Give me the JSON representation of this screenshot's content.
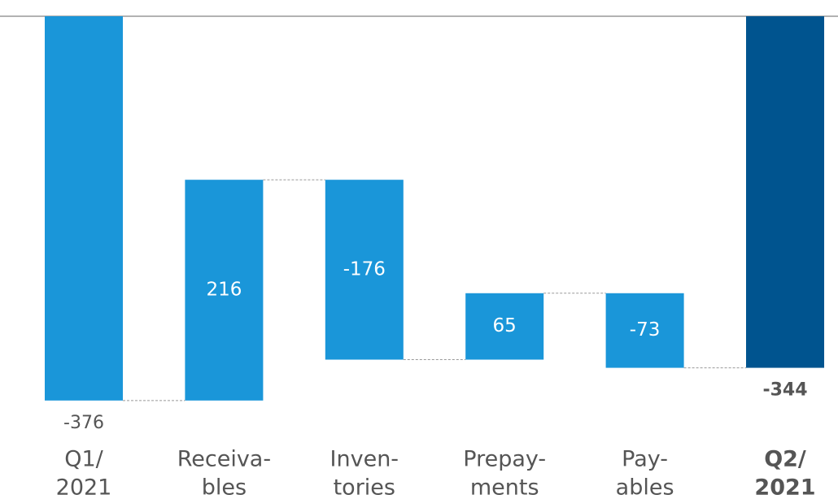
{
  "chart_data": {
    "type": "waterfall",
    "categories": [
      [
        "Q1/",
        "2021"
      ],
      [
        "Receiva-",
        "bles"
      ],
      [
        "Inven-",
        "tories"
      ],
      [
        "Prepay-",
        "ments"
      ],
      [
        "Pay-",
        "ables"
      ],
      [
        "Q2/",
        "2021"
      ]
    ],
    "values": [
      -376,
      216,
      -176,
      65,
      -73,
      -344
    ],
    "totals": [
      true,
      false,
      false,
      false,
      false,
      true
    ],
    "colors": [
      "#1a96d9",
      "#1a96d9",
      "#1a96d9",
      "#1a96d9",
      "#1a96d9",
      "#00548f"
    ],
    "bold": [
      false,
      false,
      false,
      false,
      false,
      true
    ],
    "ylim": [
      -400,
      0
    ]
  }
}
